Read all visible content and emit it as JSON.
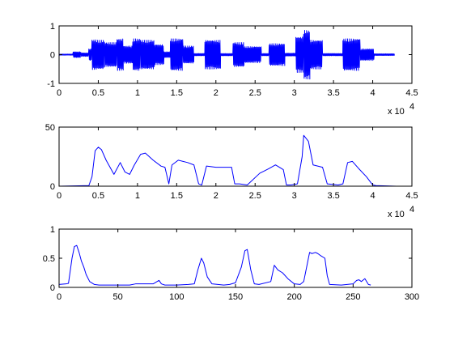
{
  "chart_data": [
    {
      "type": "line",
      "name": "waveform",
      "color": "#0000ff",
      "xlim": [
        0,
        45000
      ],
      "ylim": [
        -1,
        1
      ],
      "xticks": [
        0,
        5000,
        10000,
        15000,
        20000,
        25000,
        30000,
        35000,
        40000,
        45000
      ],
      "xtick_labels": [
        "0",
        "0.5",
        "1",
        "1.5",
        "2",
        "2.5",
        "3",
        "3.5",
        "4",
        "4.5"
      ],
      "yticks": [
        -1,
        0,
        1
      ],
      "ytick_labels": [
        "-1",
        "0",
        "1"
      ],
      "x_multiplier_label": "x 10",
      "x_multiplier_exponent": "4",
      "segments": [
        {
          "x": [
            0,
            1800
          ],
          "amp": 0.02
        },
        {
          "x": [
            1800,
            2800
          ],
          "amp": 0.1
        },
        {
          "x": [
            2800,
            3800
          ],
          "amp": 0.06
        },
        {
          "x": [
            3800,
            4200
          ],
          "amp": 0.2
        },
        {
          "x": [
            4200,
            4800
          ],
          "amp": 0.52
        },
        {
          "x": [
            4800,
            5800
          ],
          "amp": 0.5
        },
        {
          "x": [
            5800,
            7400
          ],
          "amp": 0.42
        },
        {
          "x": [
            7400,
            8200
          ],
          "amp": 0.55
        },
        {
          "x": [
            8200,
            9400
          ],
          "amp": 0.3
        },
        {
          "x": [
            9400,
            10400
          ],
          "amp": 0.55
        },
        {
          "x": [
            10400,
            12200
          ],
          "amp": 0.5
        },
        {
          "x": [
            12200,
            13400
          ],
          "amp": 0.35
        },
        {
          "x": [
            13400,
            14200
          ],
          "amp": 0.1
        },
        {
          "x": [
            14200,
            15800
          ],
          "amp": 0.55
        },
        {
          "x": [
            15800,
            17200
          ],
          "amp": 0.3
        },
        {
          "x": [
            17200,
            18600
          ],
          "amp": 0.04
        },
        {
          "x": [
            18600,
            20600
          ],
          "amp": 0.5
        },
        {
          "x": [
            20600,
            22200
          ],
          "amp": 0.04
        },
        {
          "x": [
            22200,
            23600
          ],
          "amp": 0.42
        },
        {
          "x": [
            23600,
            25800
          ],
          "amp": 0.28
        },
        {
          "x": [
            25800,
            26800
          ],
          "amp": 0.04
        },
        {
          "x": [
            26800,
            28800
          ],
          "amp": 0.38
        },
        {
          "x": [
            28800,
            30200
          ],
          "amp": 0.05
        },
        {
          "x": [
            30200,
            31200
          ],
          "amp": 0.62
        },
        {
          "x": [
            31200,
            32000
          ],
          "amp": 0.85
        },
        {
          "x": [
            32000,
            33600
          ],
          "amp": 0.5
        },
        {
          "x": [
            33600,
            36200
          ],
          "amp": 0.04
        },
        {
          "x": [
            36200,
            38400
          ],
          "amp": 0.55
        },
        {
          "x": [
            38400,
            40200
          ],
          "amp": 0.2
        },
        {
          "x": [
            40200,
            42800
          ],
          "amp": 0.03
        }
      ]
    },
    {
      "type": "line",
      "name": "envelope",
      "color": "#0000ff",
      "xlim": [
        0,
        45000
      ],
      "ylim": [
        0,
        50
      ],
      "xticks": [
        0,
        5000,
        10000,
        15000,
        20000,
        25000,
        30000,
        35000,
        40000,
        45000
      ],
      "xtick_labels": [
        "0",
        "0.5",
        "1",
        "1.5",
        "2",
        "2.5",
        "3",
        "3.5",
        "4",
        "4.5"
      ],
      "yticks": [
        0,
        50
      ],
      "ytick_labels": [
        "0",
        "50"
      ],
      "x_multiplier_label": "x 10",
      "x_multiplier_exponent": "4",
      "x": [
        0,
        3800,
        4200,
        4600,
        5000,
        5400,
        6000,
        7000,
        7800,
        8400,
        9000,
        9600,
        10400,
        11000,
        12000,
        13000,
        13500,
        14000,
        14400,
        15200,
        16400,
        17200,
        17800,
        18200,
        18800,
        20000,
        22000,
        22400,
        23000,
        24000,
        25600,
        26200,
        26800,
        27600,
        28600,
        29000,
        29600,
        30400,
        31000,
        31200,
        31800,
        32400,
        33600,
        34200,
        35600,
        36200,
        36800,
        37400,
        38200,
        39200,
        40000,
        40400,
        43000
      ],
      "y": [
        0,
        0.5,
        8,
        30,
        33,
        31,
        22,
        10,
        20,
        12,
        10,
        18,
        27,
        28,
        22,
        17,
        16,
        2,
        18,
        22,
        20,
        18,
        2,
        1,
        17,
        16,
        16,
        2,
        2,
        1,
        11,
        13,
        15,
        18,
        14,
        1,
        1,
        2,
        25,
        43,
        38,
        18,
        16,
        2,
        1,
        2,
        20,
        21,
        15,
        8,
        1,
        0.5,
        0
      ]
    },
    {
      "type": "line",
      "name": "ratio",
      "color": "#0000ff",
      "xlim": [
        0,
        300
      ],
      "ylim": [
        0,
        1
      ],
      "xticks": [
        0,
        50,
        100,
        150,
        200,
        250,
        300
      ],
      "xtick_labels": [
        "0",
        "50",
        "100",
        "150",
        "200",
        "250",
        "300"
      ],
      "yticks": [
        0,
        0.5,
        1
      ],
      "ytick_labels": [
        "0",
        "0.5",
        "1"
      ],
      "x": [
        0,
        6,
        8,
        11,
        13,
        15,
        17,
        19,
        21,
        23,
        26,
        30,
        34,
        40,
        60,
        65,
        70,
        80,
        85,
        87,
        90,
        100,
        110,
        115,
        118,
        121,
        123,
        126,
        130,
        140,
        145,
        150,
        155,
        158,
        160,
        163,
        166,
        170,
        180,
        183,
        186,
        190,
        195,
        200,
        205,
        208,
        213,
        215,
        218,
        220,
        222,
        226,
        228,
        230,
        240,
        245,
        250,
        253,
        255,
        257,
        260,
        263,
        265
      ],
      "y": [
        0.05,
        0.06,
        0.07,
        0.5,
        0.7,
        0.72,
        0.6,
        0.45,
        0.35,
        0.22,
        0.1,
        0.05,
        0.04,
        0.04,
        0.04,
        0.06,
        0.06,
        0.06,
        0.12,
        0.06,
        0.04,
        0.04,
        0.05,
        0.06,
        0.3,
        0.5,
        0.42,
        0.18,
        0.06,
        0.04,
        0.05,
        0.08,
        0.35,
        0.63,
        0.65,
        0.3,
        0.06,
        0.05,
        0.1,
        0.38,
        0.3,
        0.25,
        0.14,
        0.06,
        0.05,
        0.1,
        0.6,
        0.58,
        0.6,
        0.58,
        0.55,
        0.5,
        0.2,
        0.05,
        0.04,
        0.05,
        0.06,
        0.12,
        0.13,
        0.1,
        0.15,
        0.05,
        0.04
      ]
    }
  ]
}
